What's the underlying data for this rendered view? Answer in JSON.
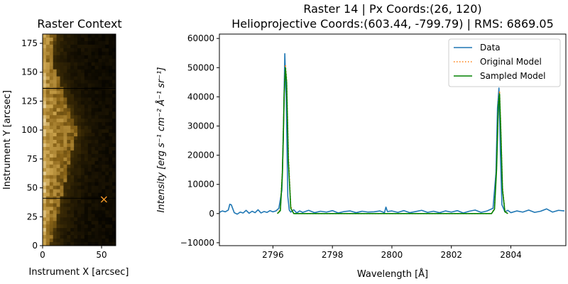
{
  "chart_data": [
    {
      "type": "heatmap",
      "title": "Raster Context",
      "xlabel": "Instrument X [arcsec]",
      "ylabel": "Instrument Y [arcsec]",
      "xlim": [
        0,
        62
      ],
      "ylim": [
        0,
        183
      ],
      "xticks": [
        0,
        50
      ],
      "yticks": [
        0,
        25,
        50,
        75,
        100,
        125,
        150,
        175
      ],
      "colormap": [
        "#000000",
        "#3a2a05",
        "#8a6418",
        "#c8a04a",
        "#f2dfae"
      ],
      "slit_lines_y": [
        41,
        136
      ],
      "marker": {
        "x": 52,
        "y": 40,
        "symbol": "x",
        "color": "#ff9f2a"
      }
    },
    {
      "type": "line",
      "title": "Raster 14 | Px Coords:(26, 120)",
      "subtitle": "Helioprojective Coords:(603.44, -799.79) | RMS: 6869.05",
      "xlabel": "Wavelength [Å]",
      "ylabel": "Intensity [erg s⁻¹ cm⁻² Å⁻¹ sr⁻¹]",
      "xlim": [
        2794.2,
        2805.85
      ],
      "ylim": [
        -11000,
        61500
      ],
      "xticks": [
        2796,
        2798,
        2800,
        2802,
        2804
      ],
      "yticks": [
        -10000,
        0,
        10000,
        20000,
        30000,
        40000,
        50000,
        60000
      ],
      "legend_position": "top-right",
      "series": [
        {
          "name": "Data",
          "color": "#1f77b4",
          "style": "solid",
          "x": [
            2794.2,
            2794.3,
            2794.4,
            2794.5,
            2794.55,
            2794.6,
            2794.7,
            2794.8,
            2794.9,
            2795.0,
            2795.1,
            2795.2,
            2795.3,
            2795.4,
            2795.5,
            2795.6,
            2795.7,
            2795.8,
            2795.9,
            2796.0,
            2796.1,
            2796.2,
            2796.3,
            2796.35,
            2796.4,
            2796.45,
            2796.5,
            2796.55,
            2796.6,
            2796.7,
            2796.8,
            2796.9,
            2797.0,
            2797.2,
            2797.4,
            2797.6,
            2797.8,
            2798.0,
            2798.2,
            2798.4,
            2798.6,
            2798.8,
            2799.0,
            2799.2,
            2799.4,
            2799.6,
            2799.75,
            2799.8,
            2799.85,
            2800.0,
            2800.2,
            2800.4,
            2800.6,
            2800.8,
            2801.0,
            2801.2,
            2801.4,
            2801.6,
            2801.8,
            2802.0,
            2802.2,
            2802.4,
            2802.6,
            2802.8,
            2803.0,
            2803.2,
            2803.4,
            2803.5,
            2803.55,
            2803.6,
            2803.65,
            2803.7,
            2803.8,
            2803.9,
            2804.0,
            2804.2,
            2804.4,
            2804.6,
            2804.8,
            2805.0,
            2805.2,
            2805.4,
            2805.6,
            2805.8
          ],
          "y": [
            400,
            900,
            600,
            1200,
            3200,
            3000,
            300,
            -200,
            500,
            200,
            1100,
            100,
            800,
            300,
            1300,
            200,
            700,
            400,
            1000,
            600,
            900,
            1800,
            8000,
            26000,
            54800,
            38000,
            6000,
            1200,
            500,
            1300,
            200,
            900,
            400,
            1100,
            300,
            800,
            500,
            1000,
            200,
            700,
            900,
            300,
            800,
            500,
            600,
            900,
            300,
            2200,
            700,
            900,
            400,
            1000,
            300,
            700,
            1100,
            400,
            800,
            300,
            900,
            500,
            1000,
            200,
            800,
            1200,
            400,
            900,
            1800,
            14000,
            36000,
            43000,
            20000,
            3000,
            600,
            1100,
            300,
            900,
            500,
            1200,
            400,
            800,
            1600,
            500,
            1100,
            900
          ]
        },
        {
          "name": "Original Model",
          "color": "#ff7f0e",
          "style": "dotted",
          "x": [
            2796.15,
            2796.25,
            2796.32,
            2796.38,
            2796.42,
            2796.46,
            2796.52,
            2796.6,
            2796.7,
            2803.35,
            2803.45,
            2803.52,
            2803.58,
            2803.62,
            2803.66,
            2803.72,
            2803.8,
            2803.9
          ],
          "y": [
            0,
            1500,
            15000,
            42000,
            51000,
            46000,
            20000,
            2500,
            0,
            0,
            1800,
            16000,
            38000,
            42000,
            30000,
            9000,
            800,
            0
          ]
        },
        {
          "name": "Sampled Model",
          "color": "#008000",
          "style": "solid",
          "x": [
            2796.15,
            2796.25,
            2796.32,
            2796.38,
            2796.42,
            2796.46,
            2796.52,
            2796.6,
            2796.7,
            2803.35,
            2803.45,
            2803.52,
            2803.58,
            2803.62,
            2803.66,
            2803.72,
            2803.8,
            2803.9
          ],
          "y": [
            0,
            1000,
            14000,
            41000,
            50000,
            45000,
            18000,
            1800,
            0,
            0,
            1500,
            15000,
            37000,
            41000,
            29000,
            8000,
            600,
            0
          ]
        }
      ]
    }
  ]
}
